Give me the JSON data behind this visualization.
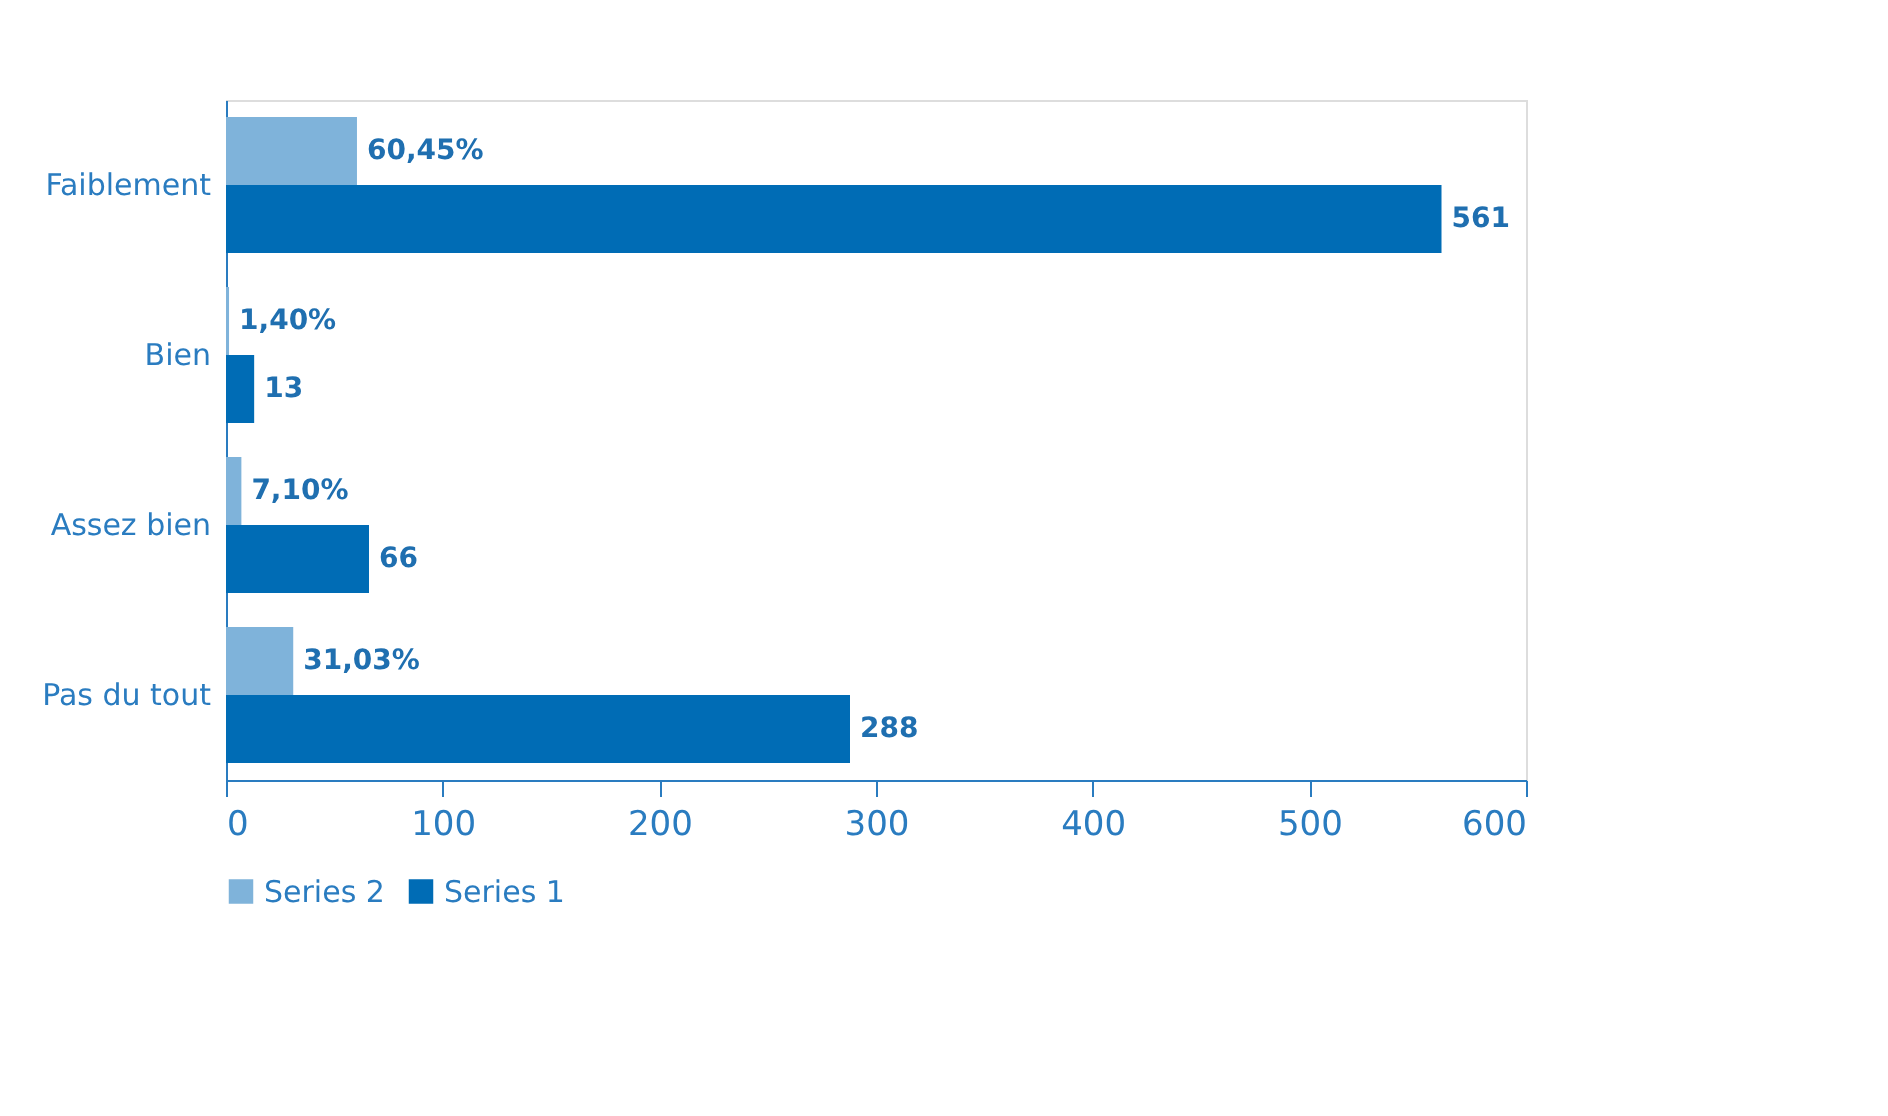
{
  "chart_data": {
    "type": "bar",
    "orientation": "horizontal",
    "categories": [
      "Faiblement",
      "Bien",
      "Assez bien",
      "Pas du tout"
    ],
    "series": [
      {
        "name": "Series 2",
        "color": "#7fb3da",
        "values": [
          60.45,
          1.4,
          7.1,
          31.03
        ],
        "value_labels": [
          "60,45%",
          "1,40%",
          "7,10%",
          "31,03%"
        ]
      },
      {
        "name": "Series 1",
        "color": "#006cb5",
        "values": [
          561,
          13,
          66,
          288
        ],
        "value_labels": [
          "561",
          "13",
          "66",
          "288"
        ]
      }
    ],
    "xlim": [
      0,
      600
    ],
    "xticks": [
      0,
      100,
      200,
      300,
      400,
      500,
      600
    ],
    "grid": false,
    "legend": "bottom"
  }
}
